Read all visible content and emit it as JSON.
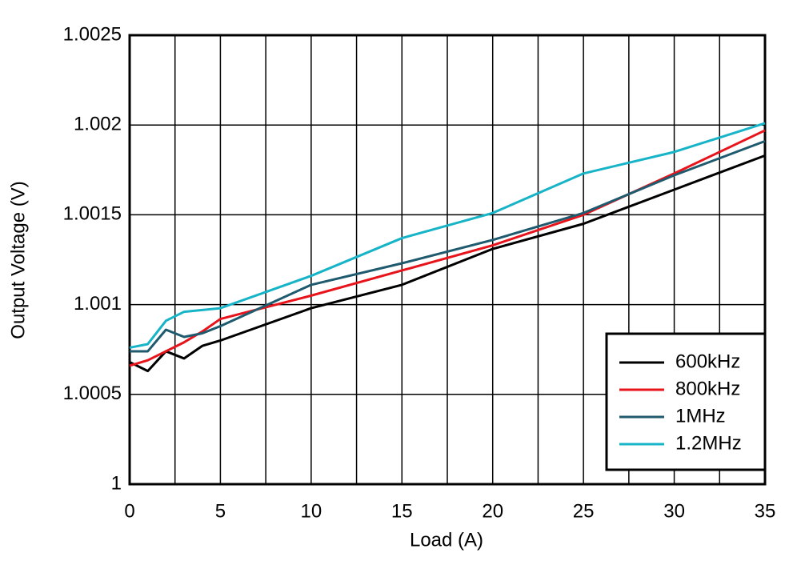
{
  "chart_data": {
    "type": "line",
    "x_label": "Load (A)",
    "y_label": "Output Voltage (V)",
    "x": [
      0,
      1,
      2,
      3,
      4,
      5,
      10,
      15,
      20,
      25,
      30,
      35
    ],
    "series": [
      {
        "name": "600kHz",
        "color": "#000000",
        "values": [
          1.00068,
          1.00063,
          1.00074,
          1.0007,
          1.00077,
          1.0008,
          1.00098,
          1.00111,
          1.00131,
          1.00145,
          1.00164,
          1.00183
        ]
      },
      {
        "name": "800kHz",
        "color": "#e8141c",
        "values": [
          1.00066,
          1.00069,
          1.00074,
          1.00079,
          1.00085,
          1.00092,
          1.00105,
          1.00119,
          1.00133,
          1.0015,
          1.00173,
          1.00197
        ]
      },
      {
        "name": "1MHz",
        "color": "#1f5a6e",
        "values": [
          1.00074,
          1.00074,
          1.00086,
          1.00082,
          1.00084,
          1.00088,
          1.00111,
          1.00123,
          1.00136,
          1.00151,
          1.00172,
          1.00191
        ]
      },
      {
        "name": "1.2MHz",
        "color": "#17b4c8",
        "values": [
          1.00076,
          1.00078,
          1.00091,
          1.00096,
          1.00097,
          1.00098,
          1.00116,
          1.00137,
          1.00151,
          1.00173,
          1.00185,
          1.00201
        ]
      }
    ],
    "xlim": [
      0,
      35
    ],
    "xticks": [
      0,
      5,
      10,
      15,
      20,
      25,
      30,
      35
    ],
    "x_minor_grid": [
      2.5,
      7.5,
      12.5,
      17.5,
      22.5,
      27.5,
      32.5
    ],
    "ylim": [
      1,
      1.0025
    ],
    "yticks": [
      1,
      1.0005,
      1.001,
      1.0015,
      1.002,
      1.0025
    ],
    "grid": true,
    "legend": "lower right"
  }
}
